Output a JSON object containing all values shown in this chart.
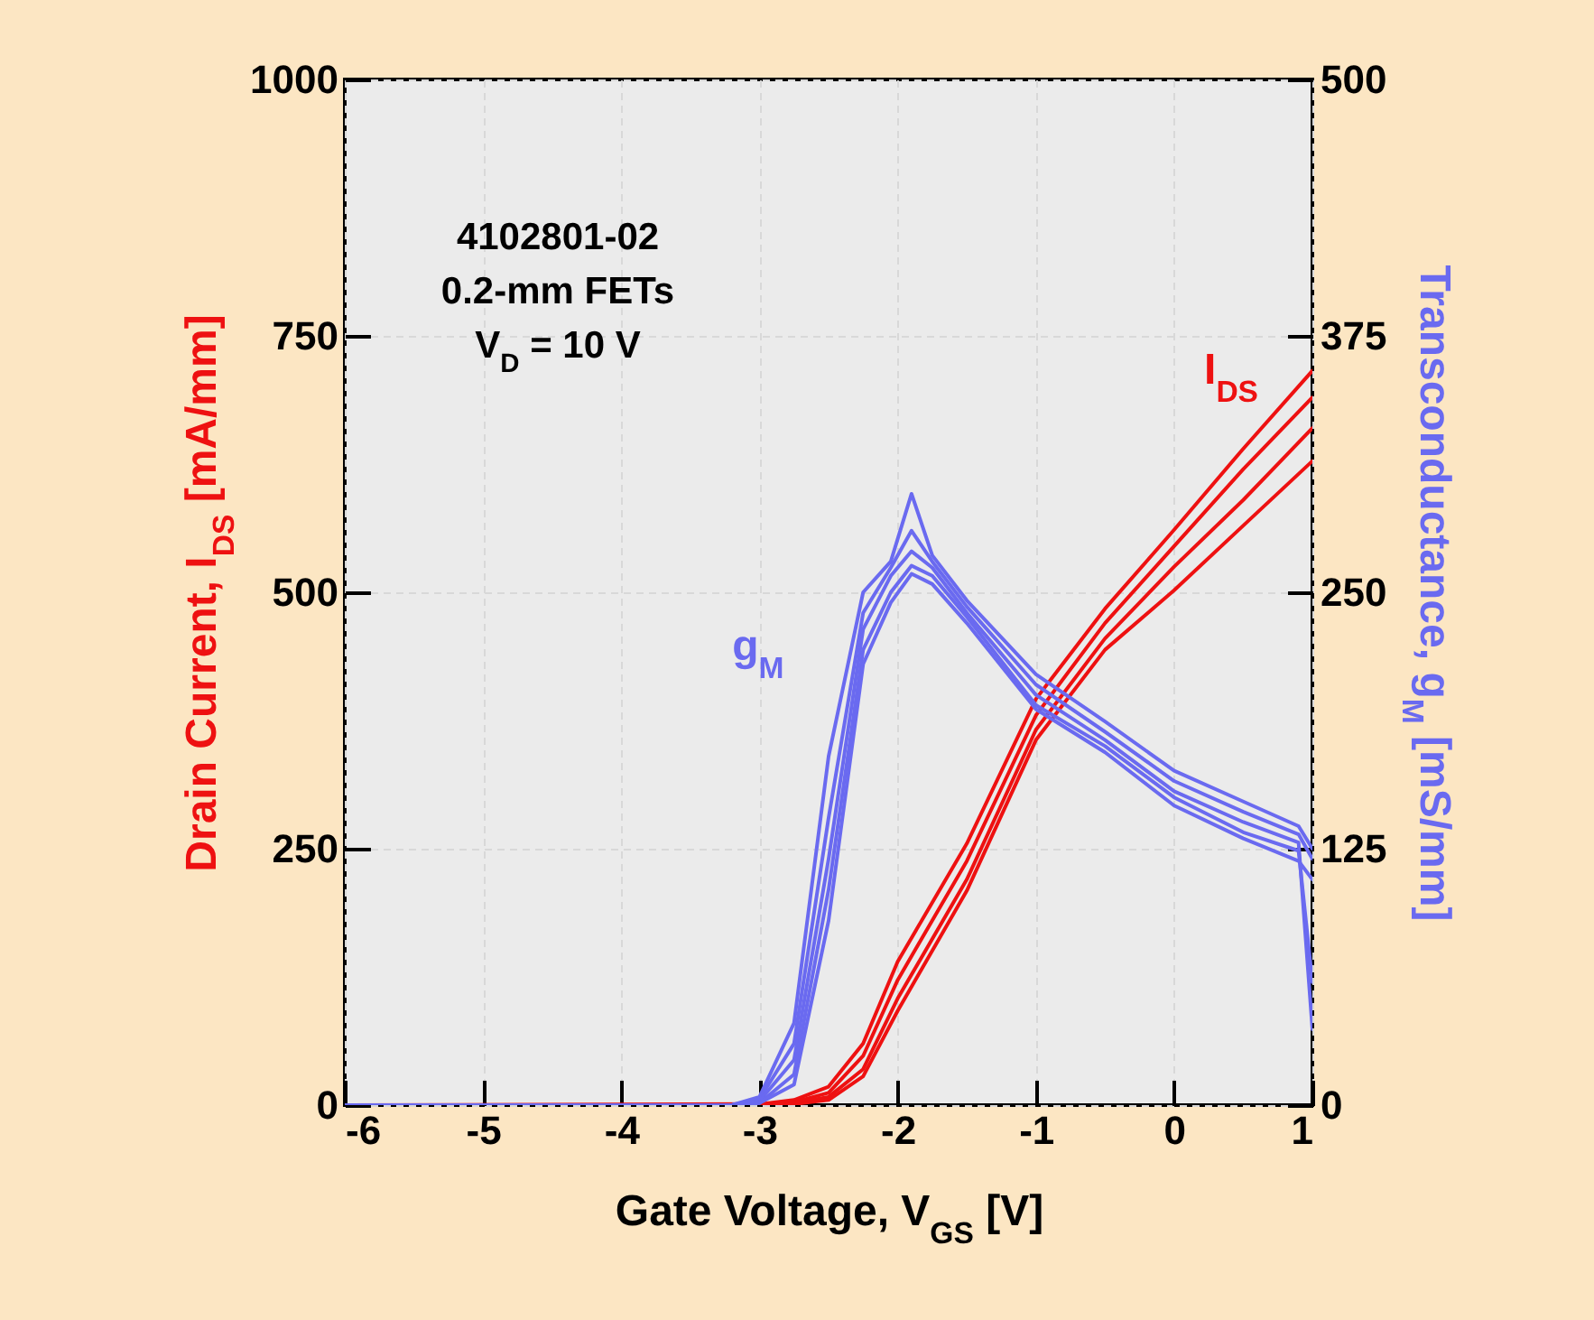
{
  "chart_data": {
    "type": "line",
    "xlabel": "Gate Voltage, V$_{GS}$ [V]",
    "ylabel": "Drain Current, I$_{DS}$ [mA/mm]",
    "y2label": "Transconductance, g$_{M}$ [mS/mm]",
    "annotations": [
      "4102801-02",
      "0.2-mm FETs",
      "V$_{D}$ = 10 V"
    ],
    "xlim": [
      -6,
      1
    ],
    "xticks": [
      -6,
      -5,
      -4,
      -3,
      -2,
      -1,
      0,
      1
    ],
    "ylim": [
      0,
      1000
    ],
    "yticks": [
      0,
      250,
      500,
      750,
      1000
    ],
    "y2lim": [
      0,
      500
    ],
    "y2ticks": [
      0,
      125,
      250,
      375,
      500
    ],
    "grid": true,
    "series": [
      {
        "name": "I$_{DS}$",
        "color": "#ee1111",
        "x": [
          -6,
          -3,
          -2.75,
          -2.5,
          -2.25,
          -2,
          -1.5,
          -1,
          -0.5,
          0,
          0.5,
          1
        ],
        "values": [
          0,
          1,
          5,
          18,
          60,
          140,
          255,
          396,
          484,
          561,
          640,
          716
        ]
      },
      {
        "color": "#ee1111",
        "x": [
          -6,
          -3,
          -2.75,
          -2.5,
          -2.25,
          -2,
          -1.5,
          -1,
          -0.5,
          0,
          0.5,
          1
        ],
        "values": [
          0,
          0,
          3,
          12,
          48,
          122,
          238,
          380,
          470,
          545,
          620,
          690
        ]
      },
      {
        "color": "#ee1111",
        "x": [
          -6,
          -3,
          -2.75,
          -2.5,
          -2.25,
          -2,
          -1.5,
          -1,
          -0.5,
          0,
          0.5,
          1
        ],
        "values": [
          0,
          0,
          2,
          8,
          35,
          104,
          220,
          366,
          455,
          525,
          590,
          660
        ]
      },
      {
        "color": "#ee1111",
        "x": [
          -6,
          -3,
          -2.75,
          -2.5,
          -2.25,
          -2,
          -1.5,
          -1,
          -0.5,
          0,
          0.5,
          1
        ],
        "values": [
          0,
          0,
          1,
          5,
          28,
          92,
          209,
          356,
          444,
          502,
          565,
          628
        ]
      },
      {
        "name": "g$_{M}$",
        "color": "#6a6af0",
        "axis": "y2",
        "x": [
          -6,
          -3.2,
          -3,
          -2.75,
          -2.5,
          -2.25,
          -2.05,
          -1.9,
          -1.75,
          -1.5,
          -1,
          -0.5,
          0,
          0.5,
          0.9,
          1
        ],
        "values": [
          0,
          0,
          4,
          40,
          170,
          250,
          265,
          298,
          268,
          246,
          210,
          187,
          163,
          148,
          136,
          125
        ]
      },
      {
        "color": "#6a6af0",
        "axis": "y2",
        "x": [
          -6,
          -3.2,
          -3,
          -2.75,
          -2.5,
          -2.25,
          -2.05,
          -1.9,
          -1.75,
          -1.5,
          -1,
          -0.5,
          0,
          0.5,
          0.9,
          1
        ],
        "values": [
          0,
          0,
          3,
          30,
          140,
          240,
          262,
          280,
          265,
          243,
          205,
          182,
          158,
          143,
          132,
          120
        ]
      },
      {
        "color": "#6a6af0",
        "axis": "y2",
        "x": [
          -6,
          -3.2,
          -3,
          -2.75,
          -2.5,
          -2.25,
          -2.05,
          -1.9,
          -1.75,
          -1.5,
          -1,
          -0.5,
          0,
          0.5,
          0.9,
          1
        ],
        "values": [
          0,
          0,
          2,
          22,
          120,
          232,
          258,
          270,
          262,
          240,
          200,
          178,
          153,
          138,
          128,
          37
        ]
      },
      {
        "color": "#6a6af0",
        "axis": "y2",
        "x": [
          -6,
          -3.2,
          -3,
          -2.75,
          -2.5,
          -2.25,
          -2.05,
          -1.9,
          -1.75,
          -1.5,
          -1,
          -0.5,
          0,
          0.5,
          0.9,
          1
        ],
        "values": [
          0,
          0,
          1,
          15,
          105,
          222,
          250,
          263,
          258,
          238,
          195,
          175,
          150,
          133,
          124,
          60
        ]
      },
      {
        "color": "#6a6af0",
        "axis": "y2",
        "x": [
          -6,
          -3.2,
          -3,
          -2.75,
          -2.5,
          -2.25,
          -2.05,
          -1.9,
          -1.75,
          -1.5,
          -1,
          -0.5,
          0,
          0.5,
          0.9,
          1
        ],
        "values": [
          0,
          0,
          1,
          10,
          90,
          215,
          245,
          259,
          254,
          235,
          193,
          172,
          146,
          130,
          119,
          110
        ]
      }
    ]
  }
}
